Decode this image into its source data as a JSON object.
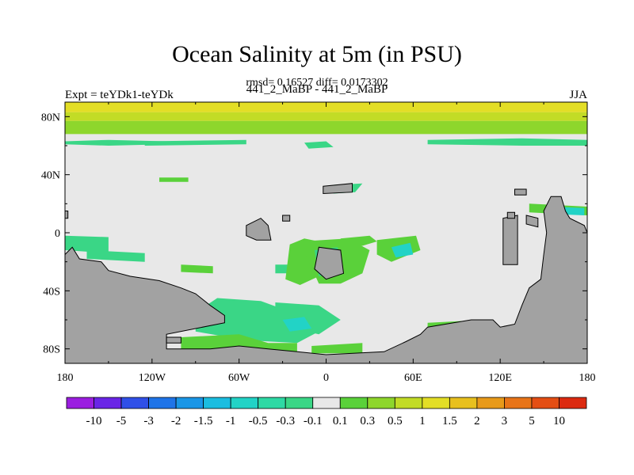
{
  "title": "Ocean Salinity at 5m (in PSU)",
  "stats_line": "rmsd= 0.16527 diff= 0.0173302",
  "experiment_label": "Expt = teYDk1-teYDk",
  "center_label": "441_2_MaBP - 441_2_MaBP",
  "season_label": "JJA",
  "chart_data": {
    "type": "heatmap",
    "projection": "cylindrical-equidistant",
    "xlim": [
      -180,
      180
    ],
    "ylim": [
      -90,
      90
    ],
    "x_ticks": [
      {
        "value": -180,
        "label": "180"
      },
      {
        "value": -120,
        "label": "120W"
      },
      {
        "value": -60,
        "label": "60W"
      },
      {
        "value": 0,
        "label": "0"
      },
      {
        "value": 60,
        "label": "60E"
      },
      {
        "value": 120,
        "label": "120E"
      },
      {
        "value": 180,
        "label": "180"
      }
    ],
    "y_ticks": [
      {
        "value": 80,
        "label": "80N"
      },
      {
        "value": 40,
        "label": "40N"
      },
      {
        "value": 0,
        "label": "0"
      },
      {
        "value": -40,
        "label": "40S"
      },
      {
        "value": -80,
        "label": "80S"
      }
    ],
    "colorbar": {
      "labels": [
        "-10",
        "-5",
        "-3",
        "-2",
        "-1.5",
        "-1",
        "-0.5",
        "-0.3",
        "-0.1",
        "0.1",
        "0.3",
        "0.5",
        "1",
        "1.5",
        "2",
        "3",
        "5",
        "10"
      ],
      "colors": [
        "#9b1ee0",
        "#6a25e6",
        "#3050e8",
        "#1f74e8",
        "#1a96e6",
        "#1bbde0",
        "#22d3c6",
        "#2ed9a4",
        "#3ad686",
        "#e8e8e8",
        "#5ad13a",
        "#8ed62c",
        "#c2dc26",
        "#e3de26",
        "#e8c01e",
        "#e89a1a",
        "#e87418",
        "#e44e14",
        "#dc2a10"
      ]
    },
    "background_color": "#e8e8e8",
    "land_color": "#a2a2a2",
    "regions": [
      {
        "kind": "band",
        "lat": [
          83,
          90
        ],
        "color": "#e3de26"
      },
      {
        "kind": "band",
        "lat": [
          77,
          83
        ],
        "color": "#c2dc26"
      },
      {
        "kind": "band",
        "lat": [
          68,
          77
        ],
        "color": "#8ed62c"
      },
      {
        "kind": "poly",
        "color": "#3ad686",
        "pts": [
          [
            -180,
            63
          ],
          [
            -150,
            64
          ],
          [
            -110,
            63
          ],
          [
            -110,
            61
          ],
          [
            -150,
            60
          ],
          [
            -180,
            61
          ]
        ]
      },
      {
        "kind": "poly",
        "color": "#3ad686",
        "pts": [
          [
            -125,
            63
          ],
          [
            -55,
            64
          ],
          [
            -55,
            61
          ],
          [
            -125,
            60
          ]
        ]
      },
      {
        "kind": "poly",
        "color": "#3ad686",
        "pts": [
          [
            -15,
            62
          ],
          [
            0,
            63
          ],
          [
            5,
            59
          ],
          [
            -12,
            58
          ]
        ]
      },
      {
        "kind": "poly",
        "color": "#3ad686",
        "pts": [
          [
            70,
            64
          ],
          [
            135,
            65
          ],
          [
            180,
            64
          ],
          [
            180,
            60
          ],
          [
            135,
            60
          ],
          [
            70,
            61
          ]
        ]
      },
      {
        "kind": "poly",
        "color": "#3ad686",
        "pts": [
          [
            -180,
            -2
          ],
          [
            -150,
            -3
          ],
          [
            -150,
            -14
          ],
          [
            -180,
            -12
          ]
        ]
      },
      {
        "kind": "poly",
        "color": "#3ad686",
        "pts": [
          [
            -165,
            -12
          ],
          [
            -125,
            -14
          ],
          [
            -125,
            -20
          ],
          [
            -165,
            -18
          ]
        ]
      },
      {
        "kind": "poly",
        "color": "#5ad13a",
        "pts": [
          [
            -100,
            -22
          ],
          [
            -78,
            -23
          ],
          [
            -78,
            -28
          ],
          [
            -100,
            -27
          ]
        ]
      },
      {
        "kind": "poly",
        "color": "#3ad686",
        "pts": [
          [
            -35,
            -22
          ],
          [
            -8,
            -22
          ],
          [
            -8,
            -28
          ],
          [
            -35,
            -28
          ]
        ]
      },
      {
        "kind": "poly",
        "color": "#5ad13a",
        "pts": [
          [
            -25,
            -8
          ],
          [
            -15,
            -4
          ],
          [
            -5,
            -6
          ],
          [
            -5,
            -30
          ],
          [
            -18,
            -36
          ],
          [
            -28,
            -32
          ]
        ]
      },
      {
        "kind": "poly",
        "color": "#5ad13a",
        "pts": [
          [
            -18,
            -6
          ],
          [
            15,
            -4
          ],
          [
            30,
            -12
          ],
          [
            25,
            -28
          ],
          [
            10,
            -35
          ],
          [
            -5,
            -35
          ]
        ]
      },
      {
        "kind": "poly",
        "color": "#3ad686",
        "pts": [
          [
            -8,
            -12
          ],
          [
            8,
            -10
          ],
          [
            10,
            -28
          ],
          [
            -5,
            -30
          ]
        ]
      },
      {
        "kind": "poly",
        "color": "#c2dc26",
        "pts": [
          [
            0,
            -18
          ],
          [
            5,
            -18
          ],
          [
            5,
            -24
          ],
          [
            0,
            -24
          ]
        ]
      },
      {
        "kind": "poly",
        "color": "#5ad13a",
        "pts": [
          [
            10,
            -4
          ],
          [
            30,
            -2
          ],
          [
            35,
            -6
          ],
          [
            25,
            -9
          ],
          [
            10,
            -8
          ]
        ]
      },
      {
        "kind": "poly",
        "color": "#5ad13a",
        "pts": [
          [
            35,
            -5
          ],
          [
            62,
            -2
          ],
          [
            65,
            -12
          ],
          [
            45,
            -20
          ],
          [
            35,
            -15
          ]
        ]
      },
      {
        "kind": "poly",
        "color": "#22d3c6",
        "pts": [
          [
            45,
            -10
          ],
          [
            58,
            -7
          ],
          [
            60,
            -15
          ],
          [
            48,
            -17
          ]
        ]
      },
      {
        "kind": "poly",
        "color": "#3ad686",
        "pts": [
          [
            -75,
            -45
          ],
          [
            -45,
            -47
          ],
          [
            -15,
            -58
          ],
          [
            -5,
            -68
          ],
          [
            -20,
            -76
          ],
          [
            -55,
            -74
          ],
          [
            -90,
            -68
          ],
          [
            -90,
            -55
          ]
        ]
      },
      {
        "kind": "poly",
        "color": "#3ad686",
        "pts": [
          [
            -35,
            -48
          ],
          [
            -5,
            -50
          ],
          [
            10,
            -60
          ],
          [
            -5,
            -70
          ],
          [
            -35,
            -63
          ]
        ]
      },
      {
        "kind": "poly",
        "color": "#22d3c6",
        "pts": [
          [
            -30,
            -60
          ],
          [
            -15,
            -58
          ],
          [
            -10,
            -66
          ],
          [
            -25,
            -68
          ]
        ]
      },
      {
        "kind": "poly",
        "color": "#5ad13a",
        "pts": [
          [
            -100,
            -72
          ],
          [
            -60,
            -70
          ],
          [
            -40,
            -76
          ],
          [
            -20,
            -76
          ],
          [
            -20,
            -82
          ],
          [
            -100,
            -82
          ]
        ]
      },
      {
        "kind": "poly",
        "color": "#5ad13a",
        "pts": [
          [
            -10,
            -78
          ],
          [
            25,
            -76
          ],
          [
            25,
            -83
          ],
          [
            -10,
            -83
          ]
        ]
      },
      {
        "kind": "poly",
        "color": "#5ad13a",
        "pts": [
          [
            70,
            -62
          ],
          [
            110,
            -60
          ],
          [
            120,
            -72
          ],
          [
            70,
            -72
          ]
        ]
      },
      {
        "kind": "poly",
        "color": "#3ad686",
        "pts": [
          [
            5,
            33
          ],
          [
            25,
            34
          ],
          [
            20,
            28
          ],
          [
            5,
            27
          ]
        ]
      },
      {
        "kind": "poly",
        "color": "#5ad13a",
        "pts": [
          [
            -115,
            38
          ],
          [
            -95,
            38
          ],
          [
            -95,
            35
          ],
          [
            -115,
            35
          ]
        ]
      },
      {
        "kind": "poly",
        "color": "#5ad13a",
        "pts": [
          [
            140,
            20
          ],
          [
            180,
            18
          ],
          [
            180,
            12
          ],
          [
            140,
            14
          ]
        ]
      },
      {
        "kind": "poly",
        "color": "#22d3c6",
        "pts": [
          [
            155,
            18
          ],
          [
            178,
            17
          ],
          [
            178,
            12
          ],
          [
            155,
            13
          ]
        ]
      },
      {
        "kind": "land",
        "pts": [
          [
            -180,
            -15
          ],
          [
            -175,
            -10
          ],
          [
            -170,
            -18
          ],
          [
            -155,
            -20
          ],
          [
            -150,
            -26
          ],
          [
            -135,
            -30
          ],
          [
            -115,
            -33
          ],
          [
            -100,
            -38
          ],
          [
            -90,
            -42
          ],
          [
            -80,
            -50
          ],
          [
            -70,
            -57
          ],
          [
            -70,
            -62
          ],
          [
            -90,
            -66
          ],
          [
            -110,
            -70
          ],
          [
            -110,
            -80
          ],
          [
            -80,
            -80
          ],
          [
            -60,
            -78
          ],
          [
            -40,
            -80
          ],
          [
            -20,
            -82
          ],
          [
            0,
            -84
          ],
          [
            40,
            -82
          ],
          [
            55,
            -75
          ],
          [
            65,
            -70
          ],
          [
            70,
            -65
          ],
          [
            100,
            -60
          ],
          [
            115,
            -60
          ],
          [
            120,
            -65
          ],
          [
            130,
            -63
          ],
          [
            135,
            -50
          ],
          [
            140,
            -38
          ],
          [
            148,
            -32
          ],
          [
            150,
            -15
          ],
          [
            152,
            0
          ],
          [
            150,
            15
          ],
          [
            155,
            25
          ],
          [
            162,
            25
          ],
          [
            165,
            15
          ],
          [
            168,
            10
          ],
          [
            178,
            5
          ],
          [
            180,
            0
          ],
          [
            180,
            -90
          ],
          [
            -180,
            -90
          ]
        ]
      },
      {
        "kind": "land",
        "pts": [
          [
            -180,
            15
          ],
          [
            -178,
            15
          ],
          [
            -178,
            10
          ],
          [
            -180,
            10
          ]
        ]
      },
      {
        "kind": "land",
        "pts": [
          [
            -55,
            5
          ],
          [
            -45,
            10
          ],
          [
            -40,
            5
          ],
          [
            -38,
            -5
          ],
          [
            -48,
            -5
          ],
          [
            -55,
            -2
          ]
        ]
      },
      {
        "kind": "land",
        "pts": [
          [
            -30,
            12
          ],
          [
            -25,
            12
          ],
          [
            -25,
            8
          ],
          [
            -30,
            8
          ]
        ]
      },
      {
        "kind": "land",
        "pts": [
          [
            -5,
            -10
          ],
          [
            10,
            -12
          ],
          [
            12,
            -28
          ],
          [
            0,
            -32
          ],
          [
            -8,
            -25
          ]
        ]
      },
      {
        "kind": "land",
        "pts": [
          [
            -2,
            32
          ],
          [
            18,
            34
          ],
          [
            18,
            28
          ],
          [
            -2,
            27
          ]
        ]
      },
      {
        "kind": "land",
        "pts": [
          [
            122,
            10
          ],
          [
            132,
            12
          ],
          [
            132,
            -22
          ],
          [
            122,
            -22
          ]
        ]
      },
      {
        "kind": "land",
        "pts": [
          [
            130,
            30
          ],
          [
            138,
            30
          ],
          [
            138,
            26
          ],
          [
            130,
            26
          ]
        ]
      },
      {
        "kind": "land",
        "pts": [
          [
            138,
            12
          ],
          [
            146,
            10
          ],
          [
            146,
            4
          ],
          [
            138,
            6
          ]
        ]
      },
      {
        "kind": "land",
        "pts": [
          [
            125,
            14
          ],
          [
            130,
            14
          ],
          [
            130,
            10
          ],
          [
            125,
            10
          ]
        ]
      },
      {
        "kind": "land",
        "pts": [
          [
            -110,
            -72
          ],
          [
            -100,
            -72
          ],
          [
            -100,
            -76
          ],
          [
            -110,
            -76
          ]
        ]
      }
    ]
  }
}
